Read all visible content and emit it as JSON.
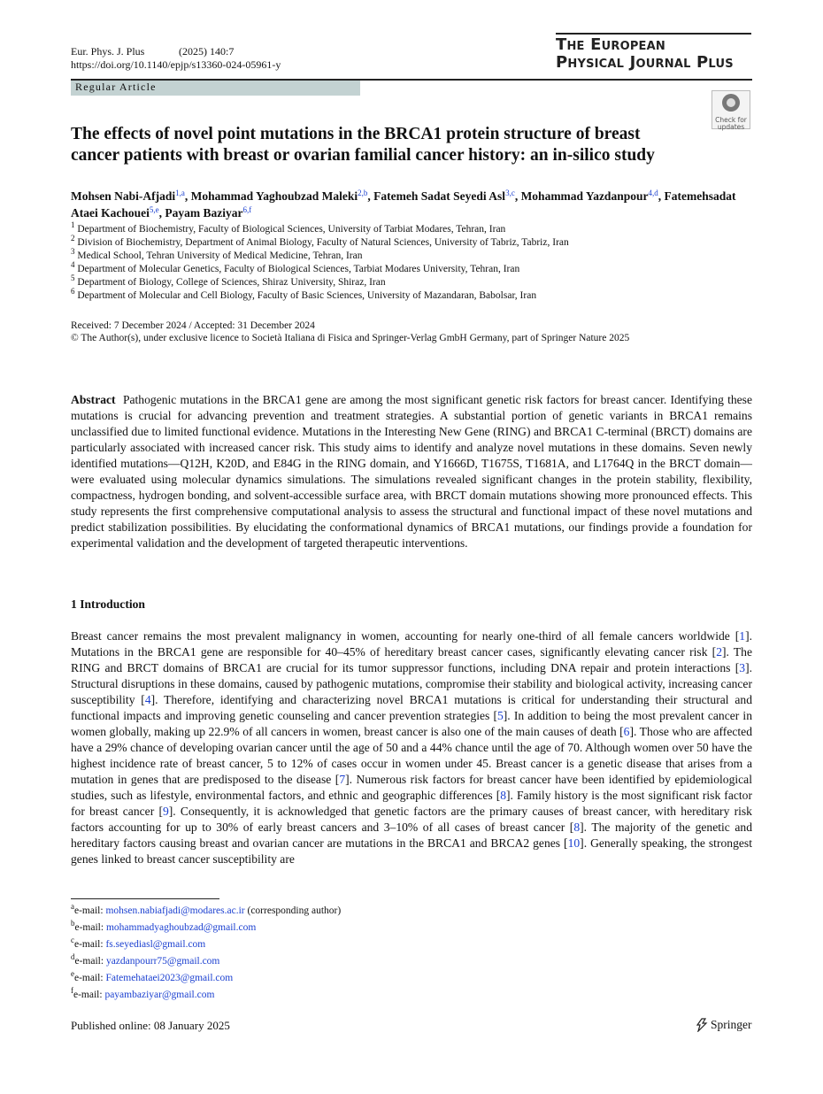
{
  "header": {
    "journal": "Eur. Phys. J. Plus",
    "issue": "(2025) 140:7",
    "doi": "https://doi.org/10.1140/epjp/s13360-024-05961-y",
    "journal_name_line1": "The European",
    "journal_name_line2": "Physical Journal Plus",
    "article_type": "Regular Article",
    "badge": "Check for updates"
  },
  "title": "The effects of novel point mutations in the BRCA1 protein structure of breast cancer patients with breast or ovarian familial cancer history: an in-silico study",
  "authors": [
    {
      "name": "Mohsen Nabi-Afjadi",
      "sup": "1,a"
    },
    {
      "name": ", Mohammad Yaghoubzad Maleki",
      "sup": "2,b"
    },
    {
      "name": ", Fatemeh Sadat Seyedi Asl",
      "sup": "3,c"
    },
    {
      "name": ", Mohammad Yazdanpour",
      "sup": "4,d"
    },
    {
      "name": ", Fatemehsadat Ataei Kachouei",
      "sup": "5,e"
    },
    {
      "name": ", Payam Baziyar",
      "sup": "6,f"
    }
  ],
  "affiliations": [
    {
      "num": "1",
      "text": "Department of Biochemistry, Faculty of Biological Sciences, University of Tarbiat Modares, Tehran, Iran"
    },
    {
      "num": "2",
      "text": "Division of Biochemistry, Department of Animal Biology, Faculty of Natural Sciences, University of Tabriz, Tabriz, Iran"
    },
    {
      "num": "3",
      "text": "Medical School, Tehran University of Medical Medicine, Tehran, Iran"
    },
    {
      "num": "4",
      "text": "Department of Molecular Genetics, Faculty of Biological Sciences, Tarbiat Modares University, Tehran, Iran"
    },
    {
      "num": "5",
      "text": "Department of Biology, College of Sciences, Shiraz University, Shiraz, Iran"
    },
    {
      "num": "6",
      "text": "Department of Molecular and Cell Biology, Faculty of Basic Sciences, University of Mazandaran, Babolsar, Iran"
    }
  ],
  "dates": "Received: 7 December 2024 / Accepted: 31 December 2024",
  "copyright": "© The Author(s), under exclusive licence to Società Italiana di Fisica and Springer-Verlag GmbH Germany, part of Springer Nature 2025",
  "abstract": {
    "label": "Abstract",
    "text": "Pathogenic mutations in the BRCA1 gene are among the most significant genetic risk factors for breast cancer. Identifying these mutations is crucial for advancing prevention and treatment strategies. A substantial portion of genetic variants in BRCA1 remains unclassified due to limited functional evidence. Mutations in the Interesting New Gene (RING) and BRCA1 C-terminal (BRCT) domains are particularly associated with increased cancer risk. This study aims to identify and analyze novel mutations in these domains. Seven newly identified mutations—Q12H, K20D, and E84G in the RING domain, and Y1666D, T1675S, T1681A, and L1764Q in the BRCT domain—were evaluated using molecular dynamics simulations. The simulations revealed significant changes in the protein stability, flexibility, compactness, hydrogen bonding, and solvent-accessible surface area, with BRCT domain mutations showing more pronounced effects. This study represents the first comprehensive computational analysis to assess the structural and functional impact of these novel mutations and predict stabilization possibilities. By elucidating the conformational dynamics of BRCA1 mutations, our findings provide a foundation for experimental validation and the development of targeted therapeutic interventions."
  },
  "section": {
    "number": "1",
    "title": "Introduction"
  },
  "intro": [
    "Breast cancer remains the most prevalent malignancy in women, accounting for nearly one-third of all female cancers worldwide [",
    "1",
    "]. Mutations in the BRCA1 gene are responsible for 40–45% of hereditary breast cancer cases, significantly elevating cancer risk [",
    "2",
    "]. The RING and BRCT domains of BRCA1 are crucial for its tumor suppressor functions, including DNA repair and protein interactions [",
    "3",
    "]. Structural disruptions in these domains, caused by pathogenic mutations, compromise their stability and biological activity, increasing cancer susceptibility [",
    "4",
    "]. Therefore, identifying and characterizing novel BRCA1 mutations is critical for understanding their structural and functional impacts and improving genetic counseling and cancer prevention strategies [",
    "5",
    "]. In addition to being the most prevalent cancer in women globally, making up 22.9% of all cancers in women, breast cancer is also one of the main causes of death [",
    "6",
    "]. Those who are affected have a 29% chance of developing ovarian cancer until the age of 50 and a 44% chance until the age of 70. Although women over 50 have the highest incidence rate of breast cancer, 5 to 12% of cases occur in women under 45. Breast cancer is a genetic disease that arises from a mutation in genes that are predisposed to the disease [",
    "7",
    "]. Numerous risk factors for breast cancer have been identified by epidemiological studies, such as lifestyle, environmental factors, and ethnic and geographic differences [",
    "8",
    "]. Family history is the most significant risk factor for breast cancer [",
    "9",
    "]. Consequently, it is acknowledged that genetic factors are the primary causes of breast cancer, with hereditary risk factors accounting for up to 30% of early breast cancers and 3–10% of all cases of breast cancer [",
    "8",
    "]. The majority of the genetic and hereditary factors causing breast and ovarian cancer are mutations in the BRCA1 and BRCA2 genes [",
    "10",
    "]. Generally speaking, the strongest genes linked to breast cancer susceptibility are"
  ],
  "footnotes": [
    {
      "mark": "a",
      "prefix": "e-mail:",
      "email": "mohsen.nabiafjadi@modares.ac.ir",
      "note": "(corresponding author)"
    },
    {
      "mark": "b",
      "prefix": "e-mail:",
      "email": "mohammadyaghoubzad@gmail.com"
    },
    {
      "mark": "c",
      "prefix": "e-mail:",
      "email": "fs.seyediasl@gmail.com"
    },
    {
      "mark": "d",
      "prefix": "e-mail:",
      "email": "yazdanpourr75@gmail.com"
    },
    {
      "mark": "e",
      "prefix": "e-mail:",
      "email": "Fatemehataei2023@gmail.com"
    },
    {
      "mark": "f",
      "prefix": "e-mail:",
      "email": "payambaziyar@gmail.com"
    }
  ],
  "footer": {
    "published": "Published online: 08 January 2025",
    "publisher": "Springer"
  }
}
